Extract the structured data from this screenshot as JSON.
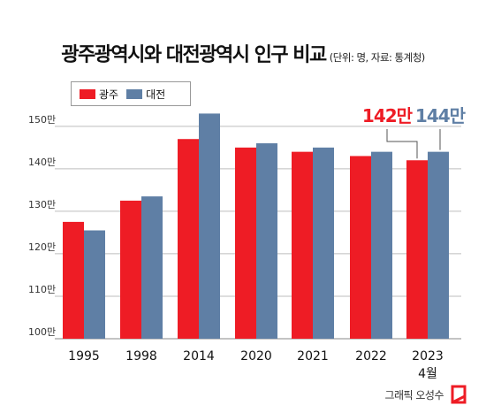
{
  "title": "광주광역시와 대전광역시 인구 비교",
  "subtitle": "(단위: 명, 자료: 통계청)",
  "credit": "그래픽 오성수",
  "colors": {
    "gwangju": "#ee1c25",
    "daejeon": "#5f7fa5",
    "grid": "#bdbdbd",
    "leader": "#555555"
  },
  "chart_data": {
    "type": "bar",
    "categories": [
      "1995",
      "1998",
      "2014",
      "2020",
      "2021",
      "2022",
      "2023"
    ],
    "category_sublabels": [
      "",
      "",
      "",
      "",
      "",
      "",
      "4월"
    ],
    "series": [
      {
        "name": "광주",
        "values": [
          127.5,
          132.5,
          147,
          145,
          144,
          143,
          142
        ]
      },
      {
        "name": "대전",
        "values": [
          125.5,
          133.5,
          153,
          146,
          145,
          144,
          144
        ]
      }
    ],
    "ylim": [
      100,
      153.5
    ],
    "yticks": [
      100,
      110,
      120,
      130,
      140,
      150
    ],
    "ytick_labels": [
      "100만",
      "110만",
      "120만",
      "130만",
      "140만",
      "150만"
    ],
    "annotations": [
      {
        "text": "142만",
        "series": 0,
        "category": 6,
        "color": "#ee1c25"
      },
      {
        "text": "144만",
        "series": 1,
        "category": 6,
        "color": "#5f7fa5"
      }
    ],
    "grid": true,
    "legend": "top-left"
  }
}
